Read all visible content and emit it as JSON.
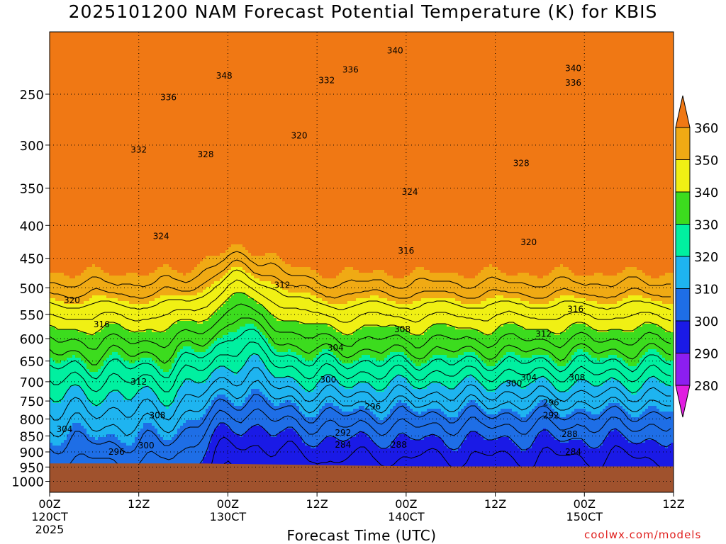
{
  "chart_data": {
    "type": "contour",
    "title": "2025101200 NAM Forecast Potential Temperature (K) for KBIS",
    "xlabel": "Forecast Time (UTC)",
    "credit": "coolwx.com/models",
    "y_ticks": [
      250,
      300,
      350,
      400,
      450,
      500,
      550,
      600,
      650,
      700,
      750,
      800,
      850,
      900,
      950,
      1000
    ],
    "y_scale": "log-pressure",
    "ylim": [
      200,
      1040
    ],
    "x_ticks": [
      {
        "hour": 0,
        "l1": "00Z",
        "l2": "120CT",
        "l3": "2025"
      },
      {
        "hour": 12,
        "l1": "12Z",
        "l2": "",
        "l3": ""
      },
      {
        "hour": 24,
        "l1": "00Z",
        "l2": "130CT",
        "l3": ""
      },
      {
        "hour": 36,
        "l1": "12Z",
        "l2": "",
        "l3": ""
      },
      {
        "hour": 48,
        "l1": "00Z",
        "l2": "140CT",
        "l3": ""
      },
      {
        "hour": 60,
        "l1": "12Z",
        "l2": "",
        "l3": ""
      },
      {
        "hour": 72,
        "l1": "00Z",
        "l2": "150CT",
        "l3": ""
      },
      {
        "hour": 84,
        "l1": "12Z",
        "l2": "",
        "l3": ""
      }
    ],
    "xlim": [
      0,
      84
    ],
    "colorbar": {
      "levels": [
        280,
        290,
        300,
        310,
        320,
        330,
        340,
        350,
        360
      ],
      "colors": [
        "#e01ee0",
        "#8c1ef0",
        "#1a1ae6",
        "#1e6ee6",
        "#1eb4f0",
        "#00f0a0",
        "#3cdc1e",
        "#f0f014",
        "#f0aa14",
        "#f07814"
      ]
    },
    "ground_color": "#a0522d",
    "contour_labels": [
      {
        "value": "340",
        "hour": 46.5,
        "p": 214
      },
      {
        "value": "340",
        "hour": 70.5,
        "p": 228
      },
      {
        "value": "348",
        "hour": 23.5,
        "p": 234
      },
      {
        "value": "336",
        "hour": 40.5,
        "p": 229
      },
      {
        "value": "336",
        "hour": 70.5,
        "p": 240
      },
      {
        "value": "332",
        "hour": 37.3,
        "p": 238
      },
      {
        "value": "336",
        "hour": 16,
        "p": 253
      },
      {
        "value": "320",
        "hour": 33.6,
        "p": 290
      },
      {
        "value": "332",
        "hour": 12,
        "p": 305
      },
      {
        "value": "328",
        "hour": 21,
        "p": 310
      },
      {
        "value": "328",
        "hour": 63.5,
        "p": 320
      },
      {
        "value": "324",
        "hour": 48.5,
        "p": 355
      },
      {
        "value": "324",
        "hour": 15,
        "p": 416
      },
      {
        "value": "320",
        "hour": 64.5,
        "p": 425
      },
      {
        "value": "316",
        "hour": 48,
        "p": 438
      },
      {
        "value": "312",
        "hour": 31.3,
        "p": 495
      },
      {
        "value": "320",
        "hour": 3,
        "p": 523
      },
      {
        "value": "316",
        "hour": 70.8,
        "p": 540
      },
      {
        "value": "316",
        "hour": 7,
        "p": 570
      },
      {
        "value": "308",
        "hour": 47.5,
        "p": 580
      },
      {
        "value": "312",
        "hour": 66.5,
        "p": 590
      },
      {
        "value": "304",
        "hour": 38.5,
        "p": 620
      },
      {
        "value": "304",
        "hour": 64.5,
        "p": 690
      },
      {
        "value": "308",
        "hour": 71,
        "p": 690
      },
      {
        "value": "312",
        "hour": 12,
        "p": 700
      },
      {
        "value": "300",
        "hour": 37.5,
        "p": 695
      },
      {
        "value": "300",
        "hour": 62.5,
        "p": 705
      },
      {
        "value": "296",
        "hour": 67.5,
        "p": 755
      },
      {
        "value": "296",
        "hour": 43.5,
        "p": 765
      },
      {
        "value": "292",
        "hour": 67.5,
        "p": 790
      },
      {
        "value": "308",
        "hour": 14.5,
        "p": 790
      },
      {
        "value": "304",
        "hour": 2,
        "p": 830
      },
      {
        "value": "292",
        "hour": 39.5,
        "p": 840
      },
      {
        "value": "288",
        "hour": 70,
        "p": 845
      },
      {
        "value": "300",
        "hour": 13,
        "p": 880
      },
      {
        "value": "284",
        "hour": 39.5,
        "p": 878
      },
      {
        "value": "288",
        "hour": 47,
        "p": 878
      },
      {
        "value": "296",
        "hour": 9,
        "p": 900
      },
      {
        "value": "284",
        "hour": 70.5,
        "p": 900
      }
    ]
  }
}
